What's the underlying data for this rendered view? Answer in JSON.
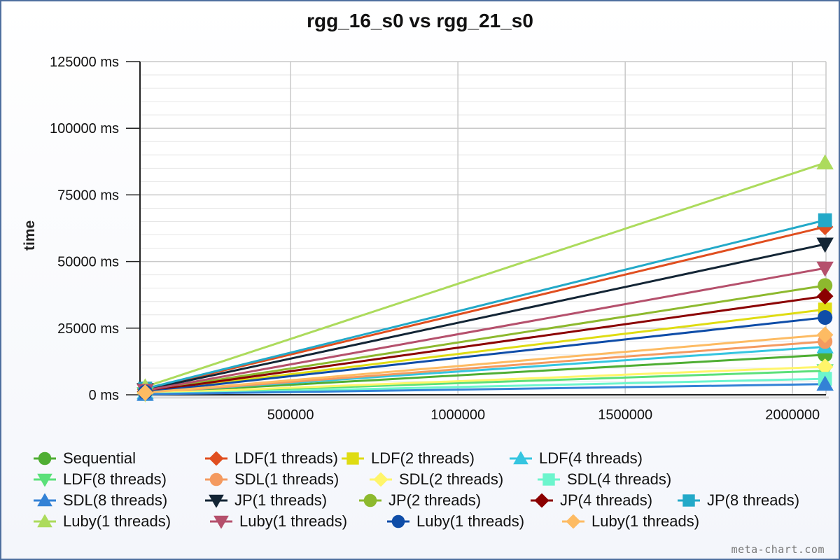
{
  "chart_data": {
    "type": "line",
    "title": "rgg_16_s0 vs rgg_21_s0",
    "xlabel": "",
    "ylabel": "time",
    "x": [
      65536,
      2097152
    ],
    "xlim": [
      50000,
      2100000
    ],
    "ylim": [
      0,
      125000
    ],
    "y_ticks": [
      0,
      25000,
      50000,
      75000,
      100000,
      125000
    ],
    "y_tick_labels": [
      "0 ms",
      "25000 ms",
      "50000 ms",
      "75000 ms",
      "100000 ms",
      "125000 ms"
    ],
    "x_ticks": [
      500000,
      1000000,
      1500000,
      2000000
    ],
    "x_tick_labels": [
      "500000",
      "1000000",
      "1500000",
      "2000000"
    ],
    "grid": true,
    "legend_position": "bottom",
    "series": [
      {
        "name": "Sequential",
        "values": [
          700,
          15000
        ],
        "color": "#4fae33",
        "marker": "circle"
      },
      {
        "name": "LDF(1 threads)",
        "values": [
          2100,
          63000
        ],
        "color": "#e04e1f",
        "marker": "diamond"
      },
      {
        "name": "LDF(2 threads)",
        "values": [
          1100,
          32000
        ],
        "color": "#dfdc12",
        "marker": "square"
      },
      {
        "name": "LDF(4 threads)",
        "values": [
          800,
          18000
        ],
        "color": "#35c5e0",
        "marker": "triangle"
      },
      {
        "name": "LDF(8 threads)",
        "values": [
          400,
          9000
        ],
        "color": "#5be07a",
        "marker": "triangle-down"
      },
      {
        "name": "SDL(1 threads)",
        "values": [
          700,
          20000
        ],
        "color": "#f49a60",
        "marker": "circle"
      },
      {
        "name": "SDL(2 threads)",
        "values": [
          500,
          10500
        ],
        "color": "#fff56a",
        "marker": "diamond"
      },
      {
        "name": "SDL(4 threads)",
        "values": [
          300,
          6000
        ],
        "color": "#6cf5cd",
        "marker": "square"
      },
      {
        "name": "SDL(8 threads)",
        "values": [
          200,
          4000
        ],
        "color": "#3382d6",
        "marker": "triangle"
      },
      {
        "name": "JP(1 threads)",
        "values": [
          1900,
          56500
        ],
        "color": "#132535",
        "marker": "triangle-down"
      },
      {
        "name": "JP(2 threads)",
        "values": [
          1400,
          41000
        ],
        "color": "#8db92e",
        "marker": "circle"
      },
      {
        "name": "JP(4 threads)",
        "values": [
          1200,
          37000
        ],
        "color": "#8b0000",
        "marker": "diamond"
      },
      {
        "name": "JP(8 threads)",
        "values": [
          2300,
          65500
        ],
        "color": "#23a9c8",
        "marker": "square"
      },
      {
        "name": "Luby(1 threads)",
        "values": [
          3000,
          87000
        ],
        "color": "#acdb5c",
        "marker": "triangle"
      },
      {
        "name": "Luby(1 threads)",
        "values": [
          1600,
          47500
        ],
        "color": "#b5506c",
        "marker": "triangle-down"
      },
      {
        "name": "Luby(1 threads)",
        "values": [
          1000,
          29000
        ],
        "color": "#0f4da8",
        "marker": "circle"
      },
      {
        "name": "Luby(1 threads)",
        "values": [
          800,
          22500
        ],
        "color": "#fdbb63",
        "marker": "diamond"
      }
    ]
  },
  "watermark": "meta-chart.com"
}
